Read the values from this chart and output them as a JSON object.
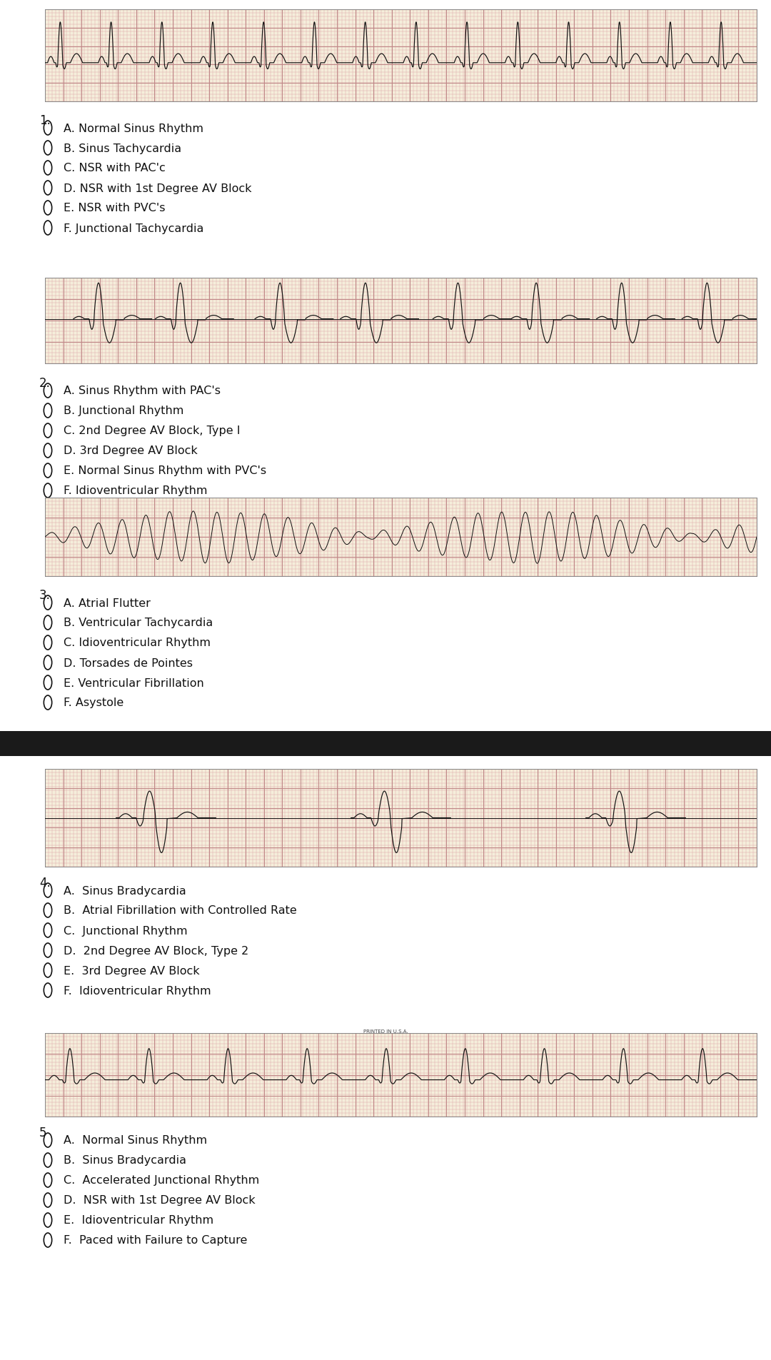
{
  "bg_color": "#f7f3e8",
  "grid_color_minor": "#e8c0c0",
  "grid_color_major": "#c89090",
  "ecg_color": "#111111",
  "text_color": "#111111",
  "option_font_size": 11.5,
  "number_font_size": 12,
  "questions": [
    {
      "number": "1.",
      "options": [
        "A. Normal Sinus Rhythm",
        "B. Sinus Tachycardia",
        "C. NSR with PAC'c",
        "D. NSR with 1st Degree AV Block",
        "E. NSR with PVC's",
        "F. Junctional Tachycardia"
      ]
    },
    {
      "number": "2.",
      "options": [
        "A. Sinus Rhythm with PAC's",
        "B. Junctional Rhythm",
        "C. 2nd Degree AV Block, Type I",
        "D. 3rd Degree AV Block",
        "E. Normal Sinus Rhythm with PVC's",
        "F. Idioventricular Rhythm"
      ]
    },
    {
      "number": "3.",
      "options": [
        "A. Atrial Flutter",
        "B. Ventricular Tachycardia",
        "C. Idioventricular Rhythm",
        "D. Torsades de Pointes",
        "E. Ventricular Fibrillation",
        "F. Asystole"
      ]
    },
    {
      "number": "4.",
      "options": [
        "A.  Sinus Bradycardia",
        "B.  Atrial Fibrillation with Controlled Rate",
        "C.  Junctional Rhythm",
        "D.  2nd Degree AV Block, Type 2",
        "E.  3rd Degree AV Block",
        "F.  Idioventricular Rhythm"
      ]
    },
    {
      "number": "5",
      "options": [
        "A.  Normal Sinus Rhythm",
        "B.  Sinus Bradycardia",
        "C.  Accelerated Junctional Rhythm",
        "D.  NSR with 1st Degree AV Block",
        "E.  Idioventricular Rhythm",
        "F.  Paced with Failure to Capture"
      ]
    }
  ]
}
